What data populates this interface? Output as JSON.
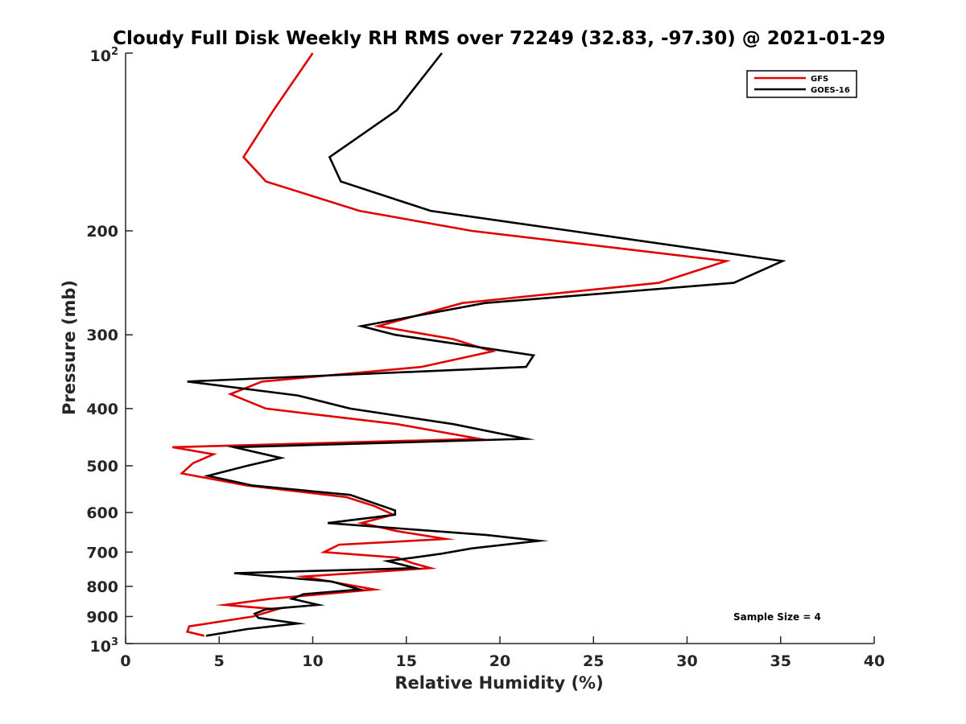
{
  "chart_data": {
    "type": "line",
    "title": "Cloudy Full Disk Weekly RH RMS over 72249 (32.83, -97.30) @ 2021-01-29",
    "xlabel": "Relative Humidity (%)",
    "ylabel": "Pressure (mb)",
    "xlim": [
      0,
      40
    ],
    "ylim": [
      100,
      1000
    ],
    "yscale": "log",
    "y_reversed": true,
    "grid": false,
    "legend_placement": "top-right",
    "x_ticks": [
      0,
      5,
      10,
      15,
      20,
      25,
      30,
      35,
      40
    ],
    "x_tick_labels": [
      "0",
      "5",
      "10",
      "15",
      "20",
      "25",
      "30",
      "35",
      "40"
    ],
    "y_ticks": [
      {
        "value": 100,
        "base": "10",
        "exp": "2"
      },
      {
        "value": 200,
        "label": "200"
      },
      {
        "value": 300,
        "label": "300"
      },
      {
        "value": 400,
        "label": "400"
      },
      {
        "value": 500,
        "label": "500"
      },
      {
        "value": 600,
        "label": "600"
      },
      {
        "value": 700,
        "label": "700"
      },
      {
        "value": 800,
        "label": "800"
      },
      {
        "value": 900,
        "label": "900"
      },
      {
        "value": 1000,
        "base": "10",
        "exp": "3"
      }
    ],
    "series": [
      {
        "name": "GFS",
        "color": "#e00000",
        "points": [
          [
            10.0,
            100
          ],
          [
            7.9,
            125
          ],
          [
            6.3,
            150
          ],
          [
            7.5,
            165
          ],
          [
            12.5,
            185
          ],
          [
            18.5,
            200
          ],
          [
            32.1,
            225
          ],
          [
            28.5,
            245
          ],
          [
            18.0,
            265
          ],
          [
            13.5,
            290
          ],
          [
            17.5,
            305
          ],
          [
            19.6,
            320
          ],
          [
            15.8,
            340
          ],
          [
            7.3,
            360
          ],
          [
            5.6,
            378
          ],
          [
            7.5,
            400
          ],
          [
            14.5,
            425
          ],
          [
            18.9,
            450
          ],
          [
            2.5,
            465
          ],
          [
            4.7,
            478
          ],
          [
            3.6,
            495
          ],
          [
            3.0,
            515
          ],
          [
            6.5,
            540
          ],
          [
            11.8,
            565
          ],
          [
            13.3,
            585
          ],
          [
            14.3,
            605
          ],
          [
            12.6,
            625
          ],
          [
            14.5,
            645
          ],
          [
            17.1,
            665
          ],
          [
            11.4,
            680
          ],
          [
            10.6,
            700
          ],
          [
            14.5,
            715
          ],
          [
            15.3,
            730
          ],
          [
            16.3,
            745
          ],
          [
            9.5,
            770
          ],
          [
            11.4,
            790
          ],
          [
            13.3,
            810
          ],
          [
            7.7,
            840
          ],
          [
            5.3,
            860
          ],
          [
            8.1,
            875
          ],
          [
            6.8,
            900
          ],
          [
            3.4,
            935
          ],
          [
            3.3,
            955
          ],
          [
            4.2,
            970
          ]
        ]
      },
      {
        "name": "GOES-16",
        "color": "#000000",
        "points": [
          [
            16.9,
            100
          ],
          [
            14.5,
            125
          ],
          [
            10.9,
            150
          ],
          [
            11.5,
            165
          ],
          [
            16.3,
            185
          ],
          [
            23.8,
            200
          ],
          [
            35.1,
            225
          ],
          [
            32.5,
            245
          ],
          [
            19.2,
            265
          ],
          [
            12.6,
            290
          ],
          [
            14.4,
            300
          ],
          [
            21.8,
            325
          ],
          [
            21.4,
            340
          ],
          [
            3.3,
            360
          ],
          [
            9.2,
            380
          ],
          [
            12.0,
            400
          ],
          [
            17.5,
            425
          ],
          [
            21.4,
            450
          ],
          [
            5.8,
            465
          ],
          [
            8.3,
            485
          ],
          [
            6.5,
            500
          ],
          [
            4.4,
            520
          ],
          [
            6.8,
            540
          ],
          [
            12.0,
            560
          ],
          [
            14.4,
            595
          ],
          [
            14.4,
            605
          ],
          [
            10.8,
            625
          ],
          [
            19.3,
            655
          ],
          [
            22.1,
            670
          ],
          [
            18.5,
            690
          ],
          [
            16.8,
            705
          ],
          [
            14.0,
            725
          ],
          [
            15.5,
            745
          ],
          [
            5.8,
            760
          ],
          [
            11.0,
            785
          ],
          [
            12.5,
            810
          ],
          [
            9.5,
            825
          ],
          [
            8.9,
            840
          ],
          [
            10.3,
            860
          ],
          [
            7.5,
            875
          ],
          [
            6.9,
            890
          ],
          [
            7.1,
            905
          ],
          [
            9.2,
            925
          ],
          [
            6.5,
            945
          ],
          [
            4.3,
            970
          ]
        ]
      }
    ],
    "annotations": [
      "Sample Size = 4"
    ]
  }
}
